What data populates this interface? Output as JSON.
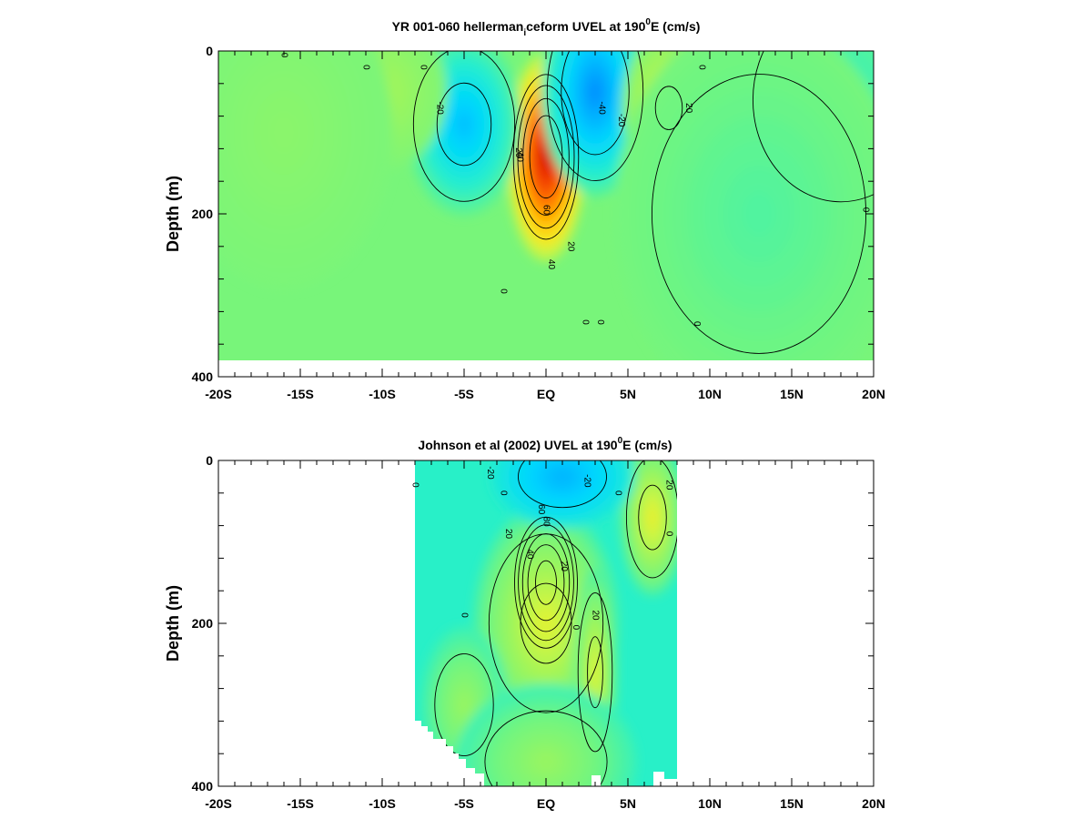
{
  "chart_data": [
    {
      "type": "heatmap",
      "panel": "model",
      "title_main": "YR 001-060 hellerman",
      "title_sub": "i",
      "title_rest": "ceform UVEL at 190",
      "title_sup": "0",
      "title_end": "E (cm/s)",
      "xlabel": "",
      "ylabel": "Depth (m)",
      "x_ticks": [
        "-20S",
        "-15S",
        "-10S",
        "-5S",
        "EQ",
        "5N",
        "10N",
        "15N",
        "20N"
      ],
      "x_tick_values": [
        -20,
        -15,
        -10,
        -5,
        0,
        5,
        10,
        15,
        20
      ],
      "y_ticks": [
        "0",
        "200",
        "400"
      ],
      "y_tick_values": [
        0,
        200,
        400
      ],
      "xlim": [
        -20,
        20
      ],
      "ylim": [
        400,
        0
      ],
      "data_xlim": [
        -20,
        20
      ],
      "data_max_depth": 380,
      "background_value": 2,
      "features": [
        {
          "lat": 0.0,
          "depth": 130,
          "value": 100,
          "lat_width": 1.1,
          "depth_width": 80
        },
        {
          "lat": -5.0,
          "depth": 90,
          "value": -28,
          "lat_width": 1.6,
          "depth_width": 70
        },
        {
          "lat": 3.0,
          "depth": 50,
          "value": -40,
          "lat_width": 1.5,
          "depth_width": 80
        },
        {
          "lat": 7.5,
          "depth": 70,
          "value": 22,
          "lat_width": 1.3,
          "depth_width": 60
        },
        {
          "lat": -10.0,
          "depth": 50,
          "value": 12,
          "lat_width": 1.8,
          "depth_width": 60
        },
        {
          "lat": -16.0,
          "depth": 100,
          "value": 6,
          "lat_width": 3.0,
          "depth_width": 120
        },
        {
          "lat": 18.0,
          "depth": 60,
          "value": -8,
          "lat_width": 3.0,
          "depth_width": 100
        },
        {
          "lat": 13.0,
          "depth": 200,
          "value": -4,
          "lat_width": 4.0,
          "depth_width": 150
        }
      ],
      "contour_levels": [
        -40,
        -20,
        0,
        20,
        40,
        60,
        80,
        100
      ],
      "contour_labels": [
        {
          "text": "0",
          "lat": -16.0,
          "depth": 5
        },
        {
          "text": "0",
          "lat": -11.0,
          "depth": 20
        },
        {
          "text": "0",
          "lat": -7.5,
          "depth": 20
        },
        {
          "text": "0",
          "lat": 9.5,
          "depth": 20
        },
        {
          "text": "-20",
          "lat": -6.5,
          "depth": 70
        },
        {
          "text": "-40",
          "lat": 3.4,
          "depth": 70
        },
        {
          "text": "-20",
          "lat": 4.6,
          "depth": 85
        },
        {
          "text": "20",
          "lat": 8.7,
          "depth": 70
        },
        {
          "text": "0",
          "lat": 19.5,
          "depth": 195
        },
        {
          "text": "40",
          "lat": -1.6,
          "depth": 130
        },
        {
          "text": "20",
          "lat": -1.7,
          "depth": 125
        },
        {
          "text": "60",
          "lat": 0.0,
          "depth": 195
        },
        {
          "text": "20",
          "lat": 1.5,
          "depth": 240
        },
        {
          "text": "40",
          "lat": 0.3,
          "depth": 262
        },
        {
          "text": "0",
          "lat": -2.6,
          "depth": 295
        },
        {
          "text": "0",
          "lat": 2.4,
          "depth": 333
        },
        {
          "text": "0",
          "lat": 3.3,
          "depth": 333
        },
        {
          "text": "0",
          "lat": 9.2,
          "depth": 335
        }
      ]
    },
    {
      "type": "heatmap",
      "panel": "observations",
      "title_main": "Johnson et al (2002) UVEL at 190",
      "title_sup": "0",
      "title_end": "E (cm/s)",
      "xlabel": "",
      "ylabel": "Depth (m)",
      "x_ticks": [
        "-20S",
        "-15S",
        "-10S",
        "-5S",
        "EQ",
        "5N",
        "10N",
        "15N",
        "20N"
      ],
      "x_tick_values": [
        -20,
        -15,
        -10,
        -5,
        0,
        5,
        10,
        15,
        20
      ],
      "y_ticks": [
        "0",
        "200",
        "400"
      ],
      "y_tick_values": [
        0,
        200,
        400
      ],
      "xlim": [
        -20,
        20
      ],
      "ylim": [
        400,
        0
      ],
      "data_xlim": [
        -8,
        8
      ],
      "data_max_depth": 400,
      "background_value": -8,
      "features": [
        {
          "lat": 0.0,
          "depth": 150,
          "value": 90,
          "lat_width": 1.0,
          "depth_width": 60
        },
        {
          "lat": 0.0,
          "depth": 200,
          "value": 25,
          "lat_width": 2.0,
          "depth_width": 90
        },
        {
          "lat": 3.0,
          "depth": 260,
          "value": 25,
          "lat_width": 0.6,
          "depth_width": 80
        },
        {
          "lat": 6.5,
          "depth": 70,
          "value": 28,
          "lat_width": 0.9,
          "depth_width": 60
        },
        {
          "lat": 1.0,
          "depth": 20,
          "value": -30,
          "lat_width": 2.0,
          "depth_width": 40
        },
        {
          "lat": -5.0,
          "depth": 300,
          "value": 10,
          "lat_width": 1.2,
          "depth_width": 60
        },
        {
          "lat": 0.0,
          "depth": 370,
          "value": 10,
          "lat_width": 2.5,
          "depth_width": 60
        }
      ],
      "contour_levels": [
        -20,
        0,
        20,
        40,
        60,
        80
      ],
      "contour_labels": [
        {
          "text": "-20",
          "lat": -3.4,
          "depth": 15
        },
        {
          "text": "-20",
          "lat": 2.5,
          "depth": 25
        },
        {
          "text": "0",
          "lat": -8.0,
          "depth": 30
        },
        {
          "text": "0",
          "lat": -2.6,
          "depth": 40
        },
        {
          "text": "0",
          "lat": 4.4,
          "depth": 40
        },
        {
          "text": "20",
          "lat": 7.5,
          "depth": 30
        },
        {
          "text": "60",
          "lat": -0.3,
          "depth": 60
        },
        {
          "text": "80",
          "lat": 0.0,
          "depth": 75
        },
        {
          "text": "20",
          "lat": -2.3,
          "depth": 90
        },
        {
          "text": "40",
          "lat": -1.0,
          "depth": 115
        },
        {
          "text": "20",
          "lat": 1.1,
          "depth": 130
        },
        {
          "text": "0",
          "lat": 7.5,
          "depth": 90
        },
        {
          "text": "0",
          "lat": -5.0,
          "depth": 190
        },
        {
          "text": "0",
          "lat": 1.8,
          "depth": 205
        },
        {
          "text": "20",
          "lat": 3.0,
          "depth": 190
        }
      ]
    }
  ]
}
